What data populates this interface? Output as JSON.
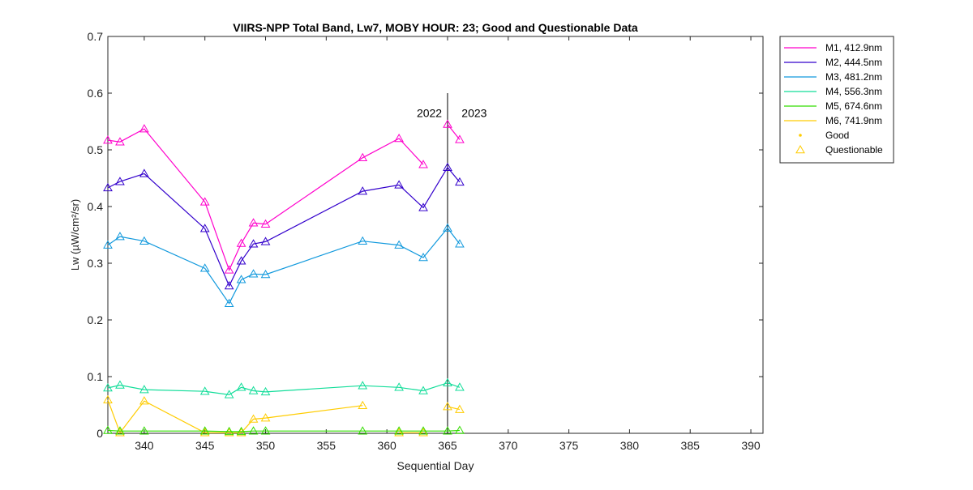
{
  "chart_data": {
    "type": "line",
    "title": "VIIRS-NPP Total Band,  Lw7, MOBY HOUR: 23;  Good and Questionable Data",
    "xlabel": "Sequential Day",
    "ylabel": "Lw (µW/cm²/sr)",
    "xlim": [
      337,
      391
    ],
    "ylim": [
      0,
      0.7
    ],
    "xticks": [
      340,
      345,
      350,
      355,
      360,
      365,
      370,
      375,
      380,
      385,
      390
    ],
    "yticks": [
      0,
      0.1,
      0.2,
      0.3,
      0.4,
      0.5,
      0.6,
      0.7
    ],
    "grid": false,
    "legend_position": "outside-top-right",
    "vertical_line": {
      "x": 365,
      "y_top": 0.6
    },
    "annotations": [
      {
        "text": "2022",
        "x": 363.5,
        "y": 0.565
      },
      {
        "text": "2023",
        "x": 367.2,
        "y": 0.565
      }
    ],
    "series": [
      {
        "name": "M1, 412.9nm",
        "color": "#ff00cc",
        "x": [
          337,
          338,
          340,
          345,
          347,
          348,
          349,
          350,
          358,
          361,
          363,
          365,
          366
        ],
        "y": [
          0.517,
          0.514,
          0.537,
          0.408,
          0.288,
          0.335,
          0.371,
          0.369,
          0.486,
          0.52,
          0.474,
          0.545,
          0.518
        ],
        "breaks_after_index": [
          10
        ]
      },
      {
        "name": "M2, 444.5nm",
        "color": "#3300cc",
        "x": [
          337,
          338,
          340,
          345,
          347,
          348,
          349,
          350,
          358,
          361,
          363,
          365,
          366
        ],
        "y": [
          0.433,
          0.444,
          0.458,
          0.361,
          0.26,
          0.304,
          0.334,
          0.338,
          0.427,
          0.438,
          0.398,
          0.469,
          0.443
        ],
        "breaks_after_index": []
      },
      {
        "name": "M3, 481.2nm",
        "color": "#1199dd",
        "x": [
          337,
          338,
          340,
          345,
          347,
          348,
          349,
          350,
          358,
          361,
          363,
          365,
          366
        ],
        "y": [
          0.332,
          0.347,
          0.339,
          0.291,
          0.229,
          0.271,
          0.281,
          0.28,
          0.339,
          0.332,
          0.31,
          0.362,
          0.334
        ],
        "breaks_after_index": []
      },
      {
        "name": "M4, 556.3nm",
        "color": "#11dd99",
        "x": [
          337,
          338,
          340,
          345,
          347,
          348,
          349,
          350,
          358,
          361,
          363,
          365,
          366
        ],
        "y": [
          0.08,
          0.085,
          0.077,
          0.074,
          0.068,
          0.081,
          0.075,
          0.073,
          0.084,
          0.081,
          0.075,
          0.089,
          0.081
        ],
        "breaks_after_index": []
      },
      {
        "name": "M5, 674.6nm",
        "color": "#33dd00",
        "x": [
          337,
          338,
          340,
          345,
          347,
          348,
          349,
          350,
          358,
          361,
          363,
          365,
          366
        ],
        "y": [
          0.005,
          0.004,
          0.004,
          0.004,
          0.003,
          0.003,
          0.004,
          0.004,
          0.004,
          0.004,
          0.004,
          0.004,
          0.005
        ],
        "breaks_after_index": []
      },
      {
        "name": "M6, 741.9nm",
        "color": "#ffcc00",
        "x": [
          337,
          338,
          340,
          345,
          347,
          348,
          349,
          350,
          358,
          361,
          363,
          365,
          366
        ],
        "y": [
          0.059,
          0.001,
          0.057,
          0.001,
          0.001,
          0.001,
          0.025,
          0.027,
          0.049,
          0.001,
          0.001,
          0.047,
          0.042
        ],
        "breaks_after_index": [
          8,
          10
        ]
      }
    ],
    "legend_extra": [
      {
        "label": "Good",
        "marker": "dot",
        "color": "#ffcc00"
      },
      {
        "label": "Questionable",
        "marker": "triangle",
        "color": "#ffcc00"
      }
    ]
  }
}
